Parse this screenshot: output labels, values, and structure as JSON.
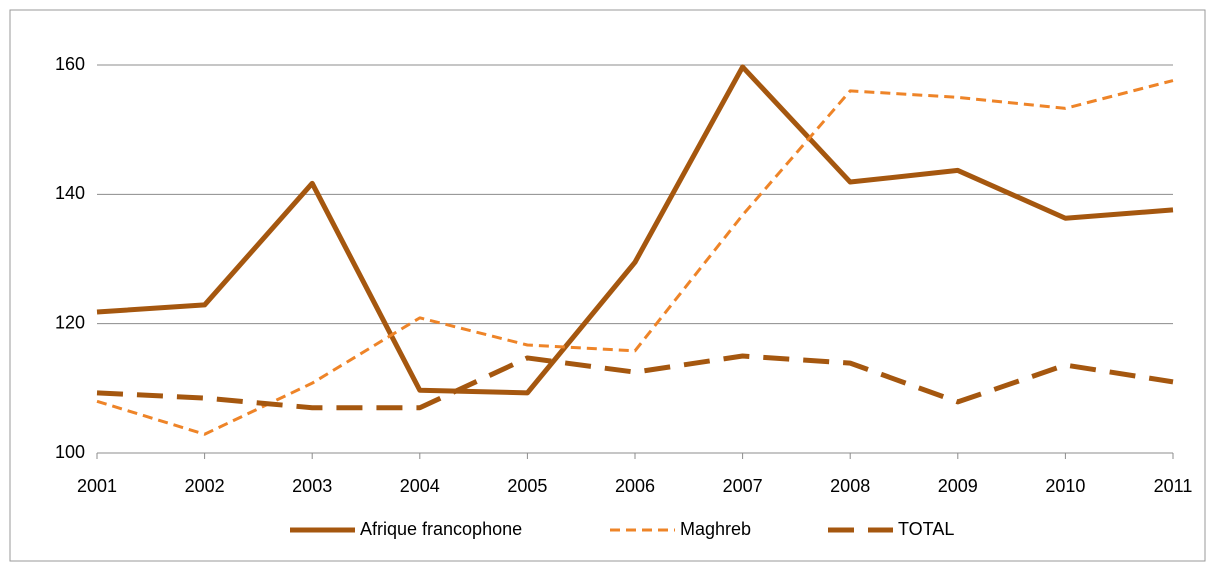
{
  "chart_data": {
    "type": "line",
    "categories": [
      "2001",
      "2002",
      "2003",
      "2004",
      "2005",
      "2006",
      "2007",
      "2008",
      "2009",
      "2010",
      "2011"
    ],
    "series": [
      {
        "name": "Afrique francophone",
        "color": "#a5570f",
        "dash": "solid",
        "values": [
          121.8,
          122.9,
          141.7,
          109.7,
          109.3,
          129.5,
          159.7,
          141.9,
          143.7,
          136.3,
          137.6
        ]
      },
      {
        "name": "Maghreb",
        "color": "#ee8428",
        "dash": "short",
        "values": [
          108,
          102.9,
          110.8,
          120.9,
          116.7,
          115.8,
          136.8,
          156,
          155,
          153.3,
          157.6
        ]
      },
      {
        "name": "TOTAL",
        "color": "#a5570f",
        "dash": "long",
        "values": [
          109.3,
          108.5,
          107,
          107,
          114.7,
          112.5,
          115,
          113.9,
          107.9,
          113.6,
          111
        ]
      }
    ],
    "ylim": [
      100,
      160
    ],
    "yticks": [
      100,
      120,
      140,
      160
    ],
    "grid": true,
    "legend": "bottom"
  }
}
